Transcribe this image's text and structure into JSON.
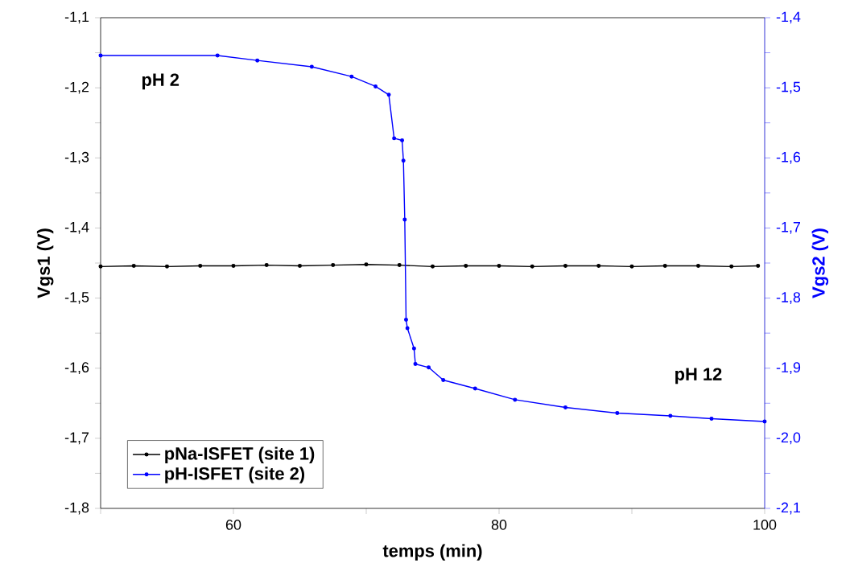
{
  "chart_data": {
    "type": "line",
    "xlabel": "temps (min)",
    "ylabel": "Vgs1 (V)",
    "y2label": "Vgs2 (V)",
    "xlim": [
      50,
      100
    ],
    "xticks": [
      {
        "value": 50,
        "label": null
      },
      60,
      {
        "value": 70,
        "label": null
      },
      80,
      {
        "value": 90,
        "label": null
      },
      100
    ],
    "ylim": [
      -1.8,
      -1.1
    ],
    "yticks": [
      {
        "value": -1.8,
        "label": "-1,8"
      },
      {
        "value": -1.75,
        "label": null
      },
      {
        "value": -1.7,
        "label": "-1,7"
      },
      {
        "value": -1.65,
        "label": null
      },
      {
        "value": -1.6,
        "label": "-1,6"
      },
      {
        "value": -1.55,
        "label": null
      },
      {
        "value": -1.5,
        "label": "-1,5"
      },
      {
        "value": -1.45,
        "label": null
      },
      {
        "value": -1.4,
        "label": "-1,4"
      },
      {
        "value": -1.35,
        "label": null
      },
      {
        "value": -1.3,
        "label": "-1,3"
      },
      {
        "value": -1.25,
        "label": null
      },
      {
        "value": -1.2,
        "label": "-1,2"
      },
      {
        "value": -1.15,
        "label": null
      },
      {
        "value": -1.1,
        "label": "-1,1"
      }
    ],
    "y2lim": [
      -2.1,
      -1.4
    ],
    "y2ticks": [
      {
        "value": -2.1,
        "label": "-2,1"
      },
      {
        "value": -2.05,
        "label": null
      },
      {
        "value": -2.0,
        "label": "-2,0"
      },
      {
        "value": -1.95,
        "label": null
      },
      {
        "value": -1.9,
        "label": "-1,9"
      },
      {
        "value": -1.85,
        "label": null
      },
      {
        "value": -1.8,
        "label": "-1,8"
      },
      {
        "value": -1.75,
        "label": null
      },
      {
        "value": -1.7,
        "label": "-1,7"
      },
      {
        "value": -1.65,
        "label": null
      },
      {
        "value": -1.6,
        "label": "-1,6"
      },
      {
        "value": -1.55,
        "label": null
      },
      {
        "value": -1.5,
        "label": "-1,5"
      },
      {
        "value": -1.45,
        "label": null
      },
      {
        "value": -1.4,
        "label": "-1,4"
      }
    ],
    "series": [
      {
        "name": "pNa-ISFET (site 1)",
        "color": "#000000",
        "x": [
          50,
          52.5,
          55,
          57.5,
          60,
          62.5,
          65,
          67.5,
          70,
          72.5,
          75,
          77.5,
          80,
          82.5,
          85,
          87.5,
          90,
          92.5,
          95,
          97.5,
          99.5
        ],
        "values": [
          -1.455,
          -1.454,
          -1.455,
          -1.454,
          -1.454,
          -1.453,
          -1.454,
          -1.453,
          -1.452,
          -1.453,
          -1.455,
          -1.454,
          -1.454,
          -1.455,
          -1.454,
          -1.454,
          -1.455,
          -1.454,
          -1.454,
          -1.455,
          -1.454
        ]
      },
      {
        "name": "pH-ISFET (site 2)",
        "color": "#0000ff",
        "axis": "y2",
        "x": [
          50,
          58.8,
          61.8,
          65.9,
          68.9,
          70.7,
          71.7,
          72.1,
          72.7,
          72.8,
          72.9,
          73.0,
          73.1,
          73.6,
          73.7,
          74.7,
          75.8,
          78.2,
          81.2,
          85,
          88.9,
          92.9,
          96,
          100
        ],
        "values": [
          -1.454,
          -1.454,
          -1.461,
          -1.47,
          -1.484,
          -1.498,
          -1.51,
          -1.572,
          -1.575,
          -1.604,
          -1.688,
          -1.831,
          -1.843,
          -1.872,
          -1.894,
          -1.899,
          -1.917,
          -1.929,
          -1.945,
          -1.956,
          -1.964,
          -1.968,
          -1.972,
          -1.976
        ]
      }
    ],
    "annotations": [
      "pH 2",
      "pH 12"
    ],
    "legend": "bottom left",
    "marker": "circle",
    "line_style": "solid",
    "grid": false
  }
}
